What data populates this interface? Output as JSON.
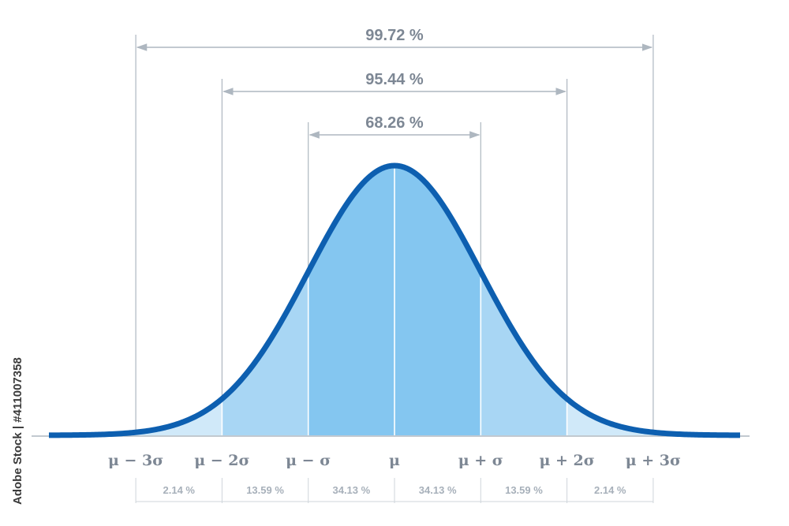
{
  "watermark": "Adobe Stock | #411007358",
  "chart_data": {
    "type": "area",
    "distribution": "normal",
    "x_domain": [
      -4,
      4
    ],
    "sigma_labels": [
      "μ − 3σ",
      "μ − 2σ",
      "μ − σ",
      "μ",
      "μ + σ",
      "μ + 2σ",
      "μ + 3σ"
    ],
    "sigma_positions": [
      -3,
      -2,
      -1,
      0,
      1,
      2,
      3
    ],
    "bands": [
      {
        "from": -3,
        "to": -2,
        "label": "2.14 %",
        "value": 2.14
      },
      {
        "from": -2,
        "to": -1,
        "label": "13.59 %",
        "value": 13.59
      },
      {
        "from": -1,
        "to": 0,
        "label": "34.13 %",
        "value": 34.13
      },
      {
        "from": 0,
        "to": 1,
        "label": "34.13 %",
        "value": 34.13
      },
      {
        "from": 1,
        "to": 2,
        "label": "13.59 %",
        "value": 13.59
      },
      {
        "from": 2,
        "to": 3,
        "label": "2.14 %",
        "value": 2.14
      }
    ],
    "ranges": [
      {
        "from": -3,
        "to": 3,
        "label": "99.72 %",
        "value": 99.72
      },
      {
        "from": -2,
        "to": 2,
        "label": "95.44 %",
        "value": 95.44
      },
      {
        "from": -1,
        "to": 1,
        "label": "68.26 %",
        "value": 68.26
      }
    ],
    "colors": {
      "curve": "#0d5fb0",
      "fill_inner": "#84c6f0",
      "fill_middle": "#a8d6f4",
      "fill_outer": "#d0e9f9",
      "lines": "#aeb7c0",
      "axis": "#aeb7c0"
    }
  }
}
